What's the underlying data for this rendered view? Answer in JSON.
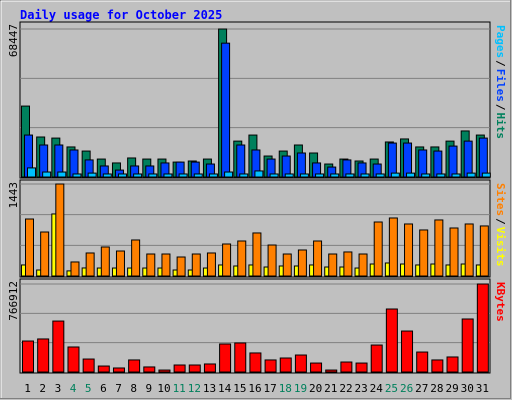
{
  "title": "Daily usage for October 2025",
  "legend_separator": "/",
  "chart_data": [
    {
      "type": "bar",
      "ylim": [
        0,
        68447
      ],
      "yticks": [
        68447
      ],
      "legend_order": [
        2,
        1,
        0
      ],
      "series": [
        {
          "name": "Hits",
          "color": "#00805c",
          "values": [
            32800,
            18500,
            18000,
            13900,
            12000,
            8300,
            6500,
            8800,
            8300,
            8300,
            6900,
            7400,
            8300,
            68447,
            16600,
            19400,
            9700,
            12000,
            14800,
            11100,
            6000,
            8300,
            7400,
            8300,
            16200,
            17600,
            13900,
            13900,
            16600,
            21300,
            19400
          ]
        },
        {
          "name": "Files",
          "color": "#0040ff",
          "values": [
            19400,
            14800,
            14800,
            12500,
            7900,
            5100,
            3200,
            5100,
            5100,
            6500,
            6900,
            6900,
            6000,
            61900,
            14800,
            12500,
            8300,
            9700,
            11100,
            6500,
            4600,
            7900,
            6500,
            6000,
            15700,
            15700,
            12500,
            12000,
            14300,
            16600,
            18000
          ]
        },
        {
          "name": "Pages",
          "color": "#00c0ff",
          "values": [
            4200,
            2300,
            2300,
            1400,
            1800,
            1400,
            1400,
            1400,
            1400,
            1400,
            1400,
            1400,
            1400,
            2300,
            1400,
            2800,
            1400,
            1400,
            1400,
            1400,
            1400,
            1400,
            1400,
            1400,
            1800,
            1800,
            1400,
            1400,
            1400,
            1800,
            1800
          ]
        }
      ]
    },
    {
      "type": "bar",
      "ylim": [
        0,
        1443
      ],
      "yticks": [
        1443
      ],
      "legend_order": [
        1,
        0
      ],
      "series": [
        {
          "name": "Visits",
          "color": "#ffff00",
          "values": [
            173,
            94,
            973,
            80,
            126,
            125,
            125,
            125,
            125,
            125,
            94,
            94,
            125,
            173,
            157,
            173,
            141,
            157,
            157,
            173,
            141,
            141,
            125,
            188,
            204,
            188,
            173,
            188,
            173,
            188,
            173
          ]
        },
        {
          "name": "Sites",
          "color": "#ff8000",
          "values": [
            894,
            690,
            1443,
            220,
            361,
            455,
            392,
            565,
            345,
            345,
            298,
            345,
            361,
            502,
            549,
            675,
            486,
            345,
            408,
            549,
            345,
            377,
            345,
            847,
            910,
            816,
            722,
            879,
            753,
            816,
            785
          ]
        }
      ]
    },
    {
      "type": "bar",
      "ylim": [
        0,
        766912
      ],
      "yticks": [
        766912
      ],
      "legend_order": [
        0
      ],
      "categories": [
        "1",
        "2",
        "3",
        "4",
        "5",
        "6",
        "7",
        "8",
        "9",
        "10",
        "11",
        "12",
        "13",
        "14",
        "15",
        "16",
        "17",
        "18",
        "19",
        "20",
        "21",
        "22",
        "23",
        "24",
        "25",
        "26",
        "27",
        "28",
        "29",
        "30",
        "31"
      ],
      "category_colors": [
        "#000000",
        "#000000",
        "#000000",
        "#00805c",
        "#00805c",
        "#000000",
        "#000000",
        "#000000",
        "#000000",
        "#000000",
        "#00805c",
        "#00805c",
        "#000000",
        "#000000",
        "#000000",
        "#000000",
        "#000000",
        "#00805c",
        "#00805c",
        "#000000",
        "#000000",
        "#000000",
        "#000000",
        "#000000",
        "#00805c",
        "#00805c",
        "#000000",
        "#000000",
        "#000000",
        "#000000",
        "#000000"
      ],
      "series": [
        {
          "name": "KBytes",
          "color": "#ff0000",
          "values": [
            270000,
            288000,
            444000,
            218000,
            113000,
            52000,
            35000,
            105000,
            44000,
            17000,
            61000,
            61000,
            70000,
            244000,
            253000,
            166000,
            105000,
            122000,
            148000,
            78000,
            17000,
            87000,
            78000,
            235000,
            549000,
            357000,
            174000,
            105000,
            131000,
            462000,
            766912
          ]
        }
      ]
    }
  ]
}
